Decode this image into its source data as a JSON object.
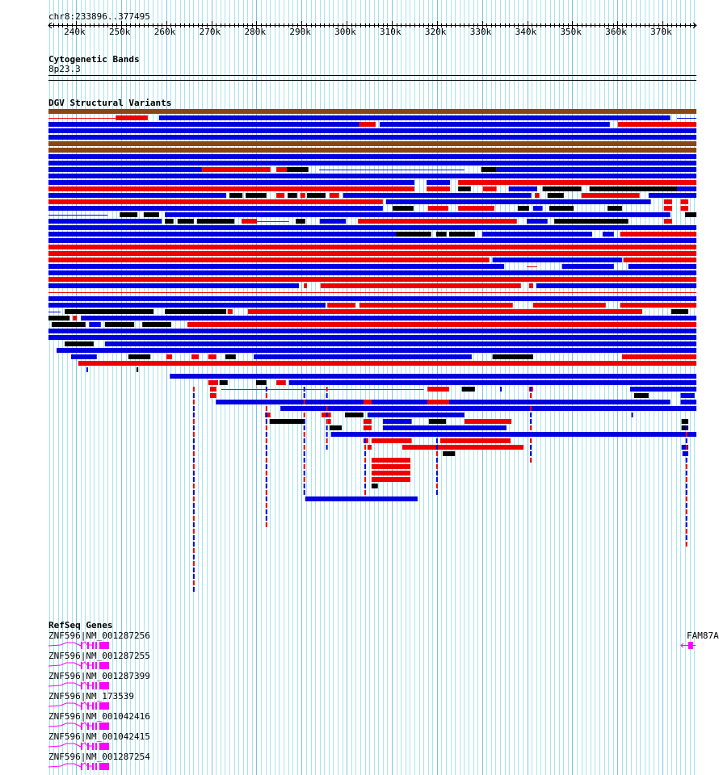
{
  "ruler": {
    "region": "chr8:233896..377495",
    "start_kb": 233.896,
    "end_kb": 377.495,
    "tick_labels": [
      "240k",
      "250k",
      "260k",
      "270k",
      "280k",
      "290k",
      "300k",
      "310k",
      "320k",
      "330k",
      "340k",
      "350k",
      "360k",
      "370k"
    ]
  },
  "colors": {
    "blue": "#0000e0",
    "red": "#ee0000",
    "black": "#000000",
    "brown": "#8b4513",
    "gene": "#ff00ff",
    "grid_minor": "#a8e4f0",
    "grid_major": "#80c0e8"
  },
  "cytoband": {
    "title": "Cytogenetic Bands",
    "band": "8p23.3"
  },
  "dgv": {
    "title": "DGV Structural Variants",
    "rows": [
      [
        [
          233.9,
          377.5,
          "n"
        ]
      ],
      [
        [
          233.9,
          248.8,
          "rl"
        ],
        [
          248.8,
          255.9,
          "r"
        ],
        [
          258.4,
          371.7,
          "b"
        ],
        [
          373.2,
          377.5,
          "bl"
        ]
      ],
      [
        [
          233.9,
          302.8,
          "b"
        ],
        [
          302.8,
          306.4,
          "r"
        ],
        [
          307.3,
          358.3,
          "b"
        ],
        [
          360.1,
          377.5,
          "r"
        ]
      ],
      [
        [
          233.9,
          377.5,
          "b"
        ]
      ],
      [
        [
          233.9,
          377.5,
          "b"
        ]
      ],
      [
        [
          233.9,
          377.5,
          "n"
        ]
      ],
      [
        [
          233.9,
          377.5,
          "n"
        ]
      ],
      [
        [
          233.9,
          377.5,
          "b"
        ]
      ],
      [
        [
          233.9,
          377.5,
          "b"
        ]
      ],
      [
        [
          233.9,
          267.9,
          "b"
        ],
        [
          267.9,
          283.1,
          "r"
        ],
        [
          284.4,
          286.7,
          "r"
        ],
        [
          286.7,
          291.5,
          "k"
        ],
        [
          293.9,
          326.1,
          "bl"
        ],
        [
          329.8,
          333.2,
          "k"
        ],
        [
          333.2,
          377.5,
          "b"
        ]
      ],
      [
        [
          233.9,
          377.5,
          "b"
        ]
      ],
      [
        [
          233.9,
          315.0,
          "b"
        ],
        [
          317.7,
          322.9,
          "b"
        ],
        [
          324.7,
          377.5,
          "r"
        ]
      ],
      [
        [
          233.9,
          315.0,
          "r"
        ],
        [
          317.7,
          322.9,
          "r"
        ],
        [
          324.7,
          327.5,
          "k"
        ],
        [
          330.2,
          333.2,
          "r"
        ],
        [
          335.9,
          342.2,
          "b"
        ],
        [
          343.4,
          352.0,
          "k"
        ],
        [
          353.8,
          373.2,
          "k"
        ],
        [
          373.2,
          377.5,
          "b"
        ]
      ],
      [
        [
          233.9,
          273.3,
          "b"
        ],
        [
          274.0,
          276.9,
          "k"
        ],
        [
          277.6,
          282.2,
          "k"
        ],
        [
          284.4,
          286.2,
          "r"
        ],
        [
          286.9,
          289.0,
          "k"
        ],
        [
          289.7,
          290.8,
          "r"
        ],
        [
          291.2,
          295.3,
          "k"
        ],
        [
          296.2,
          298.3,
          "r"
        ],
        [
          299.2,
          340.9,
          "b"
        ],
        [
          341.7,
          342.7,
          "r"
        ],
        [
          344.5,
          348.1,
          "k"
        ],
        [
          352.0,
          364.9,
          "r"
        ],
        [
          366.9,
          377.5,
          "b"
        ]
      ],
      [
        [
          233.9,
          308.0,
          "r"
        ],
        [
          308.7,
          367.4,
          "b"
        ],
        [
          370.3,
          372.1,
          "r"
        ],
        [
          374.0,
          375.7,
          "r"
        ]
      ],
      [
        [
          233.9,
          308.0,
          "b"
        ],
        [
          310.2,
          314.8,
          "k"
        ],
        [
          318.0,
          322.5,
          "r"
        ],
        [
          324.7,
          332.7,
          "r"
        ],
        [
          337.9,
          340.4,
          "k"
        ],
        [
          341.3,
          343.4,
          "b"
        ],
        [
          344.9,
          350.3,
          "k"
        ],
        [
          357.8,
          361.0,
          "k"
        ],
        [
          370.3,
          372.1,
          "r"
        ],
        [
          374.0,
          375.7,
          "r"
        ]
      ],
      [
        [
          233.9,
          247.0,
          "bl"
        ],
        [
          249.7,
          253.6,
          "k"
        ],
        [
          255.0,
          258.4,
          "k"
        ],
        [
          259.7,
          371.7,
          "b"
        ],
        [
          375.0,
          377.5,
          "k"
        ]
      ],
      [
        [
          233.9,
          259.0,
          "b"
        ],
        [
          259.7,
          261.6,
          "k"
        ],
        [
          262.5,
          266.1,
          "k"
        ],
        [
          266.8,
          275.1,
          "k"
        ],
        [
          276.7,
          280.1,
          "r"
        ],
        [
          280.1,
          287.2,
          "rl"
        ],
        [
          288.7,
          290.8,
          "k"
        ],
        [
          294.0,
          299.8,
          "b"
        ],
        [
          302.5,
          337.7,
          "r"
        ],
        [
          339.9,
          344.5,
          "b"
        ],
        [
          346.0,
          362.4,
          "k"
        ],
        [
          370.3,
          372.1,
          "r"
        ]
      ],
      [
        [
          233.9,
          377.5,
          "b"
        ]
      ],
      [
        [
          233.9,
          310.9,
          "b"
        ],
        [
          310.9,
          318.7,
          "k"
        ],
        [
          319.8,
          322.1,
          "k"
        ],
        [
          322.7,
          328.4,
          "k"
        ],
        [
          330.0,
          354.4,
          "b"
        ],
        [
          356.7,
          359.2,
          "b"
        ],
        [
          360.6,
          377.5,
          "r"
        ]
      ],
      [
        [
          233.9,
          377.5,
          "b"
        ]
      ],
      [
        [
          233.9,
          377.5,
          "r"
        ]
      ],
      [
        [
          233.9,
          377.5,
          "r"
        ]
      ],
      [
        [
          233.9,
          331.6,
          "r"
        ],
        [
          332.3,
          361.0,
          "b"
        ],
        [
          361.3,
          377.5,
          "r"
        ]
      ],
      [
        [
          233.9,
          334.9,
          "b"
        ],
        [
          339.9,
          342.2,
          "rl"
        ],
        [
          347.7,
          359.2,
          "b"
        ],
        [
          362.4,
          377.5,
          "b"
        ]
      ],
      [
        [
          233.9,
          377.5,
          "b"
        ]
      ],
      [
        [
          233.9,
          377.5,
          "r"
        ]
      ],
      [
        [
          233.9,
          289.4,
          "b"
        ],
        [
          290.5,
          291.2,
          "r"
        ],
        [
          294.2,
          338.6,
          "r"
        ],
        [
          340.4,
          341.3,
          "r"
        ],
        [
          342.0,
          377.5,
          "b"
        ]
      ],
      [
        [
          233.9,
          377.5,
          "rl"
        ]
      ],
      [
        [
          233.9,
          377.5,
          "b"
        ]
      ],
      [
        [
          233.9,
          295.3,
          "b"
        ],
        [
          295.7,
          301.9,
          "r"
        ],
        [
          302.8,
          336.8,
          "r"
        ],
        [
          341.3,
          357.4,
          "r"
        ],
        [
          360.6,
          377.5,
          "r"
        ]
      ],
      [
        [
          233.9,
          236.6,
          "bl"
        ],
        [
          237.5,
          257.2,
          "k"
        ],
        [
          259.7,
          273.3,
          "k"
        ],
        [
          273.6,
          274.7,
          "r"
        ],
        [
          278.1,
          365.5,
          "r"
        ],
        [
          371.9,
          375.7,
          "k"
        ]
      ],
      [
        [
          233.9,
          238.6,
          "k"
        ],
        [
          239.3,
          240.2,
          "r"
        ],
        [
          241.1,
          377.5,
          "b"
        ]
      ],
      [
        [
          234.6,
          242.1,
          "k"
        ],
        [
          242.9,
          245.5,
          "b"
        ],
        [
          246.4,
          252.9,
          "k"
        ],
        [
          254.7,
          261.1,
          "k"
        ],
        [
          264.7,
          377.5,
          "r"
        ]
      ],
      [
        [
          233.9,
          377.5,
          "b"
        ]
      ],
      [
        [
          233.9,
          377.5,
          "b"
        ]
      ],
      [
        [
          237.5,
          243.9,
          "k"
        ],
        [
          246.4,
          377.5,
          "b"
        ]
      ],
      [
        [
          235.7,
          377.5,
          "b"
        ]
      ],
      [
        [
          238.9,
          244.6,
          "b"
        ],
        [
          251.6,
          256.5,
          "k"
        ],
        [
          260.0,
          261.3,
          "r"
        ],
        [
          265.6,
          267.2,
          "r"
        ],
        [
          269.3,
          271.1,
          "r"
        ],
        [
          273.1,
          275.4,
          "k"
        ],
        [
          279.4,
          327.7,
          "b"
        ],
        [
          332.3,
          341.3,
          "k"
        ],
        [
          361.0,
          377.5,
          "r"
        ]
      ],
      [
        [
          240.5,
          377.5,
          "r"
        ]
      ],
      [
        [
          242.3,
          242.6,
          "b"
        ],
        [
          253.4,
          253.8,
          "k"
        ]
      ],
      [
        [
          260.8,
          377.5,
          "b"
        ]
      ],
      [
        [
          269.3,
          271.5,
          "r"
        ],
        [
          271.8,
          273.6,
          "k"
        ],
        [
          279.9,
          282.2,
          "k"
        ],
        [
          284.4,
          286.5,
          "r"
        ],
        [
          287.2,
          377.5,
          "b"
        ]
      ],
      [
        [
          269.7,
          271.1,
          "r"
        ],
        [
          272.2,
          317.1,
          "rl"
        ],
        [
          317.9,
          322.7,
          "r"
        ],
        [
          325.5,
          328.4,
          "k"
        ],
        [
          334.0,
          334.3,
          "b"
        ],
        [
          340.4,
          341.3,
          "r"
        ],
        [
          362.8,
          377.5,
          "b"
        ]
      ],
      [
        [
          269.7,
          271.1,
          "r"
        ],
        [
          363.7,
          366.9,
          "k"
        ],
        [
          374.0,
          377.1,
          "b"
        ]
      ],
      [
        [
          271.0,
          371.7,
          "b"
        ],
        [
          303.7,
          305.5,
          "r"
        ],
        [
          317.9,
          322.7,
          "r"
        ],
        [
          374.0,
          377.5,
          "b"
        ]
      ],
      [
        [
          285.3,
          377.5,
          "b"
        ]
      ],
      [
        [
          281.9,
          283.1,
          "r"
        ],
        [
          294.4,
          296.5,
          "r"
        ],
        [
          299.6,
          303.7,
          "k"
        ],
        [
          304.6,
          326.1,
          "b"
        ],
        [
          363.1,
          363.4,
          "b"
        ]
      ],
      [
        [
          282.9,
          290.8,
          "k"
        ],
        [
          295.8,
          296.5,
          "r"
        ],
        [
          303.7,
          305.5,
          "r"
        ],
        [
          308.0,
          314.4,
          "b"
        ],
        [
          318.2,
          322.0,
          "k"
        ],
        [
          326.1,
          336.5,
          "r"
        ],
        [
          374.2,
          375.7,
          "k"
        ]
      ],
      [
        [
          296.2,
          298.9,
          "k"
        ],
        [
          303.7,
          305.5,
          "r"
        ],
        [
          308.0,
          335.4,
          "b"
        ],
        [
          374.2,
          375.7,
          "k"
        ]
      ],
      [
        [
          296.5,
          377.5,
          "b"
        ]
      ],
      [
        [
          303.7,
          304.8,
          "r"
        ],
        [
          305.5,
          314.4,
          "r"
        ],
        [
          320.7,
          336.3,
          "r"
        ]
      ],
      [
        [
          304.6,
          305.5,
          "r"
        ],
        [
          312.3,
          339.2,
          "r"
        ],
        [
          374.2,
          375.7,
          "b"
        ]
      ],
      [
        [
          321.3,
          324.0,
          "k"
        ],
        [
          374.4,
          375.7,
          "b"
        ]
      ],
      [
        [
          305.5,
          314.1,
          "r"
        ]
      ],
      [
        [
          305.5,
          314.1,
          "r"
        ]
      ],
      [
        [
          305.5,
          314.1,
          "r"
        ]
      ],
      [
        [
          305.5,
          314.1,
          "r"
        ]
      ],
      [
        [
          305.5,
          306.9,
          "k"
        ]
      ],
      [],
      [
        [
          290.8,
          315.7,
          "b"
        ]
      ]
    ],
    "stacks": [
      {
        "kb": 266.1,
        "from": 43,
        "to": 74
      },
      {
        "kb": 282.2,
        "from": 43,
        "to": 64
      },
      {
        "kb": 290.6,
        "from": 43,
        "to": 59
      },
      {
        "kb": 295.6,
        "from": 43,
        "to": 52
      },
      {
        "kb": 304.1,
        "from": 50,
        "to": 59
      },
      {
        "kb": 320.0,
        "from": 51,
        "to": 59
      },
      {
        "kb": 340.8,
        "from": 42,
        "to": 54
      },
      {
        "kb": 375.3,
        "from": 49,
        "to": 67
      }
    ]
  },
  "refseq": {
    "title": "RefSeq Genes",
    "genes": [
      {
        "label": "ZNF596|NM_001287256",
        "start_kb": 233.9,
        "end_kb": 247.4,
        "strand": "+"
      },
      {
        "label": "ZNF596|NM_001287255",
        "start_kb": 233.9,
        "end_kb": 247.4,
        "strand": "+"
      },
      {
        "label": "ZNF596|NM_001287399",
        "start_kb": 233.9,
        "end_kb": 247.4,
        "strand": "+"
      },
      {
        "label": "ZNF596|NM_173539",
        "start_kb": 233.9,
        "end_kb": 247.4,
        "strand": "+"
      },
      {
        "label": "ZNF596|NM_001042416",
        "start_kb": 233.9,
        "end_kb": 247.4,
        "strand": "+"
      },
      {
        "label": "ZNF596|NM_001042415",
        "start_kb": 233.9,
        "end_kb": 247.4,
        "strand": "+"
      },
      {
        "label": "ZNF596|NM_001287254",
        "start_kb": 233.9,
        "end_kb": 247.4,
        "strand": "+"
      }
    ],
    "other": {
      "label": "FAM87A|",
      "start_kb": 374.6,
      "end_kb": 376.8,
      "strand": "-"
    }
  }
}
